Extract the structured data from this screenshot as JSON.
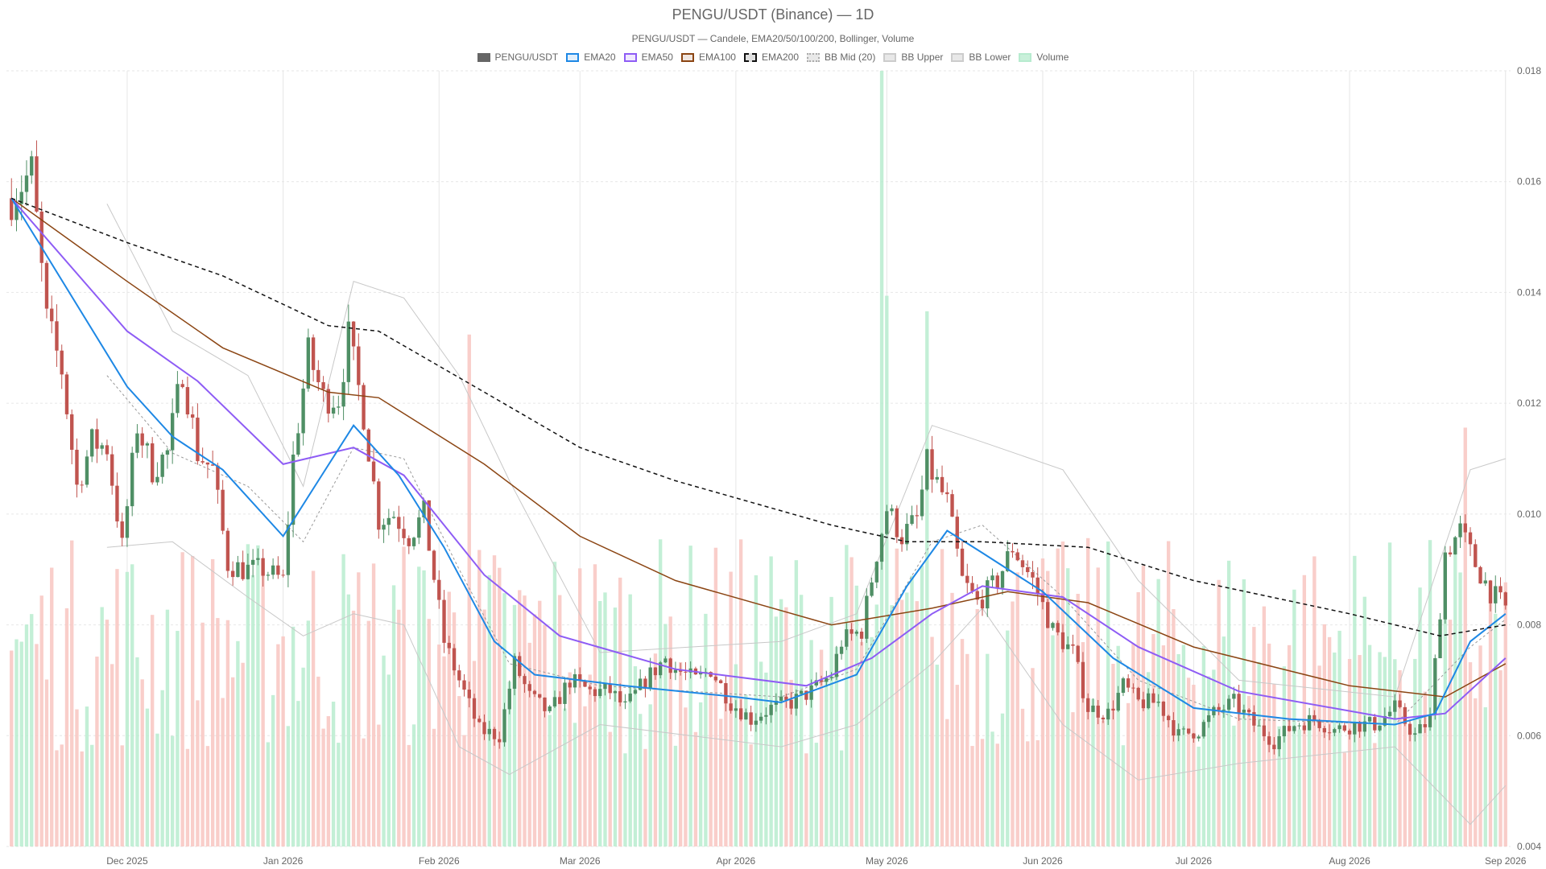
{
  "title": "PENGU/USDT (Binance) — 1D",
  "subtitle": "PENGU/USDT — Candele, EMA20/50/100/200, Bollinger, Volume",
  "legend": [
    {
      "label": "PENGU/USDT",
      "key": "price",
      "color": "#666666",
      "style": "solid"
    },
    {
      "label": "EMA20",
      "key": "ema20",
      "color": "#1e88e5",
      "style": "solid"
    },
    {
      "label": "EMA50",
      "key": "ema50",
      "color": "#8e5cf5",
      "style": "solid"
    },
    {
      "label": "EMA100",
      "key": "ema100",
      "color": "#8b4513",
      "style": "solid"
    },
    {
      "label": "EMA200",
      "key": "ema200",
      "color": "#111111",
      "style": "dashed"
    },
    {
      "label": "BB Mid (20)",
      "key": "bbmid",
      "color": "#aaaaaa",
      "style": "dotted"
    },
    {
      "label": "BB Upper",
      "key": "bbupper",
      "color": "#cccccc",
      "style": "solid"
    },
    {
      "label": "BB Lower",
      "key": "bblower",
      "color": "#cccccc",
      "style": "solid"
    },
    {
      "label": "Volume",
      "key": "volume",
      "color": "#b7ebcf",
      "style": "solid"
    }
  ],
  "colors": {
    "up": "#4f8f65",
    "down": "#c0544f",
    "vol_up": "#b9eccf",
    "vol_down": "#f8c6c1",
    "grid": "#e6e6e6"
  },
  "chart_data": {
    "type": "candlestick",
    "y_axis": {
      "position": "right",
      "ylim": [
        0.004,
        0.018
      ],
      "ticks": [
        "0.004",
        "0.006",
        "0.008",
        "0.010",
        "0.012",
        "0.014",
        "0.016",
        "0.018"
      ]
    },
    "x_axis": {
      "range": [
        "2025-11-07",
        "2026-09-02"
      ],
      "ticks": [
        {
          "date": "2025-12-01",
          "label": "Dec 2025"
        },
        {
          "date": "2026-01-01",
          "label": "Jan 2026"
        },
        {
          "date": "2026-02-01",
          "label": "Feb 2026"
        },
        {
          "date": "2026-03-01",
          "label": "Mar 2026"
        },
        {
          "date": "2026-04-01",
          "label": "Apr 2026"
        },
        {
          "date": "2026-05-01",
          "label": "May 2026"
        },
        {
          "date": "2026-06-01",
          "label": "Jun 2026"
        },
        {
          "date": "2026-07-01",
          "label": "Jul 2026"
        },
        {
          "date": "2026-08-01",
          "label": "Aug 2026"
        },
        {
          "date": "2026-09-01",
          "label": "Sep 2026"
        }
      ]
    },
    "grid": true,
    "close_anchors": [
      [
        "2025-11-08",
        0.0157
      ],
      [
        "2025-11-12",
        0.0162
      ],
      [
        "2025-11-15",
        0.0135
      ],
      [
        "2025-11-18",
        0.0126
      ],
      [
        "2025-11-21",
        0.0105
      ],
      [
        "2025-11-24",
        0.0113
      ],
      [
        "2025-11-27",
        0.0112
      ],
      [
        "2025-11-30",
        0.0094
      ],
      [
        "2025-12-03",
        0.0116
      ],
      [
        "2025-12-06",
        0.0108
      ],
      [
        "2025-12-09",
        0.0111
      ],
      [
        "2025-12-12",
        0.0126
      ],
      [
        "2025-12-15",
        0.0111
      ],
      [
        "2025-12-18",
        0.0108
      ],
      [
        "2025-12-21",
        0.0091
      ],
      [
        "2025-12-24",
        0.009
      ],
      [
        "2025-12-28",
        0.009
      ],
      [
        "2026-01-01",
        0.0088
      ],
      [
        "2026-01-03",
        0.011
      ],
      [
        "2026-01-06",
        0.0129
      ],
      [
        "2026-01-09",
        0.0121
      ],
      [
        "2026-01-12",
        0.0121
      ],
      [
        "2026-01-14",
        0.0132
      ],
      [
        "2026-01-17",
        0.0118
      ],
      [
        "2026-01-20",
        0.0099
      ],
      [
        "2026-01-23",
        0.01
      ],
      [
        "2026-01-26",
        0.0096
      ],
      [
        "2026-01-29",
        0.01
      ],
      [
        "2026-02-02",
        0.0077
      ],
      [
        "2026-02-05",
        0.007
      ],
      [
        "2026-02-09",
        0.0061
      ],
      [
        "2026-02-13",
        0.006
      ],
      [
        "2026-02-16",
        0.0073
      ],
      [
        "2026-02-19",
        0.0067
      ],
      [
        "2026-02-23",
        0.0064
      ],
      [
        "2026-02-27",
        0.007
      ],
      [
        "2026-03-03",
        0.0068
      ],
      [
        "2026-03-07",
        0.0068
      ],
      [
        "2026-03-10",
        0.0065
      ],
      [
        "2026-03-14",
        0.007
      ],
      [
        "2026-03-18",
        0.0074
      ],
      [
        "2026-03-20",
        0.0072
      ],
      [
        "2026-03-24",
        0.007
      ],
      [
        "2026-03-27",
        0.0072
      ],
      [
        "2026-03-31",
        0.0066
      ],
      [
        "2026-04-04",
        0.0063
      ],
      [
        "2026-04-08",
        0.0065
      ],
      [
        "2026-04-12",
        0.0066
      ],
      [
        "2026-04-16",
        0.0068
      ],
      [
        "2026-04-20",
        0.0071
      ],
      [
        "2026-04-22",
        0.0077
      ],
      [
        "2026-04-26",
        0.0079
      ],
      [
        "2026-04-29",
        0.0093
      ],
      [
        "2026-05-01",
        0.0101
      ],
      [
        "2026-05-04",
        0.0096
      ],
      [
        "2026-05-07",
        0.0099
      ],
      [
        "2026-05-09",
        0.0109
      ],
      [
        "2026-05-13",
        0.0102
      ],
      [
        "2026-05-16",
        0.0088
      ],
      [
        "2026-05-19",
        0.0084
      ],
      [
        "2026-05-23",
        0.0088
      ],
      [
        "2026-05-26",
        0.0094
      ],
      [
        "2026-05-30",
        0.0088
      ],
      [
        "2026-06-03",
        0.0079
      ],
      [
        "2026-06-07",
        0.0075
      ],
      [
        "2026-06-10",
        0.0065
      ],
      [
        "2026-06-14",
        0.0064
      ],
      [
        "2026-06-17",
        0.0069
      ],
      [
        "2026-06-20",
        0.0066
      ],
      [
        "2026-06-24",
        0.0066
      ],
      [
        "2026-06-28",
        0.006
      ],
      [
        "2026-07-02",
        0.0061
      ],
      [
        "2026-07-05",
        0.0064
      ],
      [
        "2026-07-09",
        0.0066
      ],
      [
        "2026-07-13",
        0.0062
      ],
      [
        "2026-07-17",
        0.0059
      ],
      [
        "2026-07-21",
        0.0062
      ],
      [
        "2026-07-25",
        0.0063
      ],
      [
        "2026-07-29",
        0.0061
      ],
      [
        "2026-08-02",
        0.0062
      ],
      [
        "2026-08-06",
        0.0062
      ],
      [
        "2026-08-10",
        0.0065
      ],
      [
        "2026-08-14",
        0.006
      ],
      [
        "2026-08-17",
        0.0063
      ],
      [
        "2026-08-20",
        0.0093
      ],
      [
        "2026-08-23",
        0.0097
      ],
      [
        "2026-08-26",
        0.0091
      ],
      [
        "2026-08-29",
        0.0086
      ],
      [
        "2026-09-01",
        0.0083
      ]
    ],
    "ema20": [
      [
        "2025-11-08",
        0.0157
      ],
      [
        "2025-12-01",
        0.0123
      ],
      [
        "2025-12-10",
        0.0114
      ],
      [
        "2025-12-20",
        0.0108
      ],
      [
        "2026-01-01",
        0.0096
      ],
      [
        "2026-01-08",
        0.0106
      ],
      [
        "2026-01-15",
        0.0116
      ],
      [
        "2026-01-24",
        0.0107
      ],
      [
        "2026-02-02",
        0.0094
      ],
      [
        "2026-02-12",
        0.0077
      ],
      [
        "2026-02-20",
        0.0071
      ],
      [
        "2026-03-10",
        0.0069
      ],
      [
        "2026-04-01",
        0.0067
      ],
      [
        "2026-04-10",
        0.0066
      ],
      [
        "2026-04-25",
        0.0071
      ],
      [
        "2026-05-05",
        0.0087
      ],
      [
        "2026-05-13",
        0.0097
      ],
      [
        "2026-05-20",
        0.0093
      ],
      [
        "2026-06-01",
        0.0086
      ],
      [
        "2026-06-15",
        0.0074
      ],
      [
        "2026-07-01",
        0.0065
      ],
      [
        "2026-07-20",
        0.0063
      ],
      [
        "2026-08-10",
        0.0062
      ],
      [
        "2026-08-18",
        0.0064
      ],
      [
        "2026-08-25",
        0.0077
      ],
      [
        "2026-09-01",
        0.0082
      ]
    ],
    "ema50": [
      [
        "2025-11-08",
        0.0157
      ],
      [
        "2025-12-01",
        0.0133
      ],
      [
        "2025-12-15",
        0.0124
      ],
      [
        "2026-01-01",
        0.0109
      ],
      [
        "2026-01-15",
        0.0112
      ],
      [
        "2026-01-25",
        0.0107
      ],
      [
        "2026-02-10",
        0.0089
      ],
      [
        "2026-02-25",
        0.0078
      ],
      [
        "2026-03-20",
        0.0072
      ],
      [
        "2026-04-15",
        0.0069
      ],
      [
        "2026-04-28",
        0.0074
      ],
      [
        "2026-05-10",
        0.0082
      ],
      [
        "2026-05-20",
        0.0087
      ],
      [
        "2026-06-05",
        0.0085
      ],
      [
        "2026-06-20",
        0.0076
      ],
      [
        "2026-07-10",
        0.0068
      ],
      [
        "2026-08-10",
        0.0063
      ],
      [
        "2026-08-20",
        0.0064
      ],
      [
        "2026-09-01",
        0.0074
      ]
    ],
    "ema100": [
      [
        "2025-11-08",
        0.0157
      ],
      [
        "2025-12-01",
        0.0142
      ],
      [
        "2025-12-20",
        0.013
      ],
      [
        "2026-01-10",
        0.0122
      ],
      [
        "2026-01-20",
        0.0121
      ],
      [
        "2026-02-10",
        0.0109
      ],
      [
        "2026-03-01",
        0.0096
      ],
      [
        "2026-03-20",
        0.0088
      ],
      [
        "2026-04-20",
        0.008
      ],
      [
        "2026-05-10",
        0.0083
      ],
      [
        "2026-05-25",
        0.0086
      ],
      [
        "2026-06-10",
        0.0084
      ],
      [
        "2026-07-01",
        0.0076
      ],
      [
        "2026-08-01",
        0.0069
      ],
      [
        "2026-08-20",
        0.0067
      ],
      [
        "2026-09-01",
        0.0073
      ]
    ],
    "ema200": [
      [
        "2025-11-08",
        0.0157
      ],
      [
        "2025-12-01",
        0.0149
      ],
      [
        "2025-12-20",
        0.0143
      ],
      [
        "2026-01-10",
        0.0134
      ],
      [
        "2026-01-20",
        0.0133
      ],
      [
        "2026-02-10",
        0.0122
      ],
      [
        "2026-03-01",
        0.0112
      ],
      [
        "2026-03-20",
        0.0106
      ],
      [
        "2026-04-20",
        0.0098
      ],
      [
        "2026-05-05",
        0.0095
      ],
      [
        "2026-05-20",
        0.0095
      ],
      [
        "2026-06-10",
        0.0094
      ],
      [
        "2026-07-01",
        0.0088
      ],
      [
        "2026-08-01",
        0.0082
      ],
      [
        "2026-08-19",
        0.0078
      ],
      [
        "2026-09-01",
        0.008
      ]
    ],
    "bb_mid": [
      [
        "2025-11-27",
        0.0125
      ],
      [
        "2025-12-10",
        0.0111
      ],
      [
        "2025-12-25",
        0.0105
      ],
      [
        "2026-01-05",
        0.0095
      ],
      [
        "2026-01-15",
        0.0112
      ],
      [
        "2026-01-25",
        0.011
      ],
      [
        "2026-02-05",
        0.009
      ],
      [
        "2026-02-15",
        0.0073
      ],
      [
        "2026-03-05",
        0.0069
      ],
      [
        "2026-04-10",
        0.0067
      ],
      [
        "2026-04-25",
        0.0072
      ],
      [
        "2026-05-10",
        0.0095
      ],
      [
        "2026-05-20",
        0.0098
      ],
      [
        "2026-06-05",
        0.0085
      ],
      [
        "2026-06-20",
        0.007
      ],
      [
        "2026-07-10",
        0.0063
      ],
      [
        "2026-08-10",
        0.0062
      ],
      [
        "2026-08-25",
        0.0076
      ],
      [
        "2026-09-01",
        0.0081
      ]
    ],
    "bb_upper": [
      [
        "2025-11-27",
        0.0156
      ],
      [
        "2025-12-10",
        0.0133
      ],
      [
        "2025-12-25",
        0.0125
      ],
      [
        "2026-01-05",
        0.0105
      ],
      [
        "2026-01-15",
        0.0142
      ],
      [
        "2026-01-25",
        0.0139
      ],
      [
        "2026-02-05",
        0.0125
      ],
      [
        "2026-02-15",
        0.0106
      ],
      [
        "2026-03-05",
        0.0075
      ],
      [
        "2026-04-10",
        0.0077
      ],
      [
        "2026-04-25",
        0.0082
      ],
      [
        "2026-05-10",
        0.0116
      ],
      [
        "2026-05-20",
        0.0113
      ],
      [
        "2026-06-05",
        0.0108
      ],
      [
        "2026-06-20",
        0.0088
      ],
      [
        "2026-07-10",
        0.007
      ],
      [
        "2026-08-10",
        0.0067
      ],
      [
        "2026-08-25",
        0.0108
      ],
      [
        "2026-09-01",
        0.011
      ]
    ],
    "bb_lower": [
      [
        "2025-11-27",
        0.0094
      ],
      [
        "2025-12-10",
        0.0095
      ],
      [
        "2025-12-25",
        0.0085
      ],
      [
        "2026-01-05",
        0.0078
      ],
      [
        "2026-01-15",
        0.0082
      ],
      [
        "2026-01-25",
        0.008
      ],
      [
        "2026-02-05",
        0.0058
      ],
      [
        "2026-02-15",
        0.0053
      ],
      [
        "2026-03-05",
        0.0062
      ],
      [
        "2026-04-10",
        0.0058
      ],
      [
        "2026-04-25",
        0.0062
      ],
      [
        "2026-05-10",
        0.0073
      ],
      [
        "2026-05-20",
        0.0083
      ],
      [
        "2026-06-05",
        0.0062
      ],
      [
        "2026-06-20",
        0.0052
      ],
      [
        "2026-07-10",
        0.0055
      ],
      [
        "2026-08-10",
        0.0058
      ],
      [
        "2026-08-25",
        0.0044
      ],
      [
        "2026-09-01",
        0.0051
      ]
    ],
    "volume_scale_note": "",
    "volume_peaks": [
      [
        "2026-04-30",
        1.0
      ],
      [
        "2026-05-01",
        0.71
      ],
      [
        "2026-05-09",
        0.69
      ],
      [
        "2026-02-07",
        0.66
      ],
      [
        "2026-08-24",
        0.54
      ]
    ]
  }
}
